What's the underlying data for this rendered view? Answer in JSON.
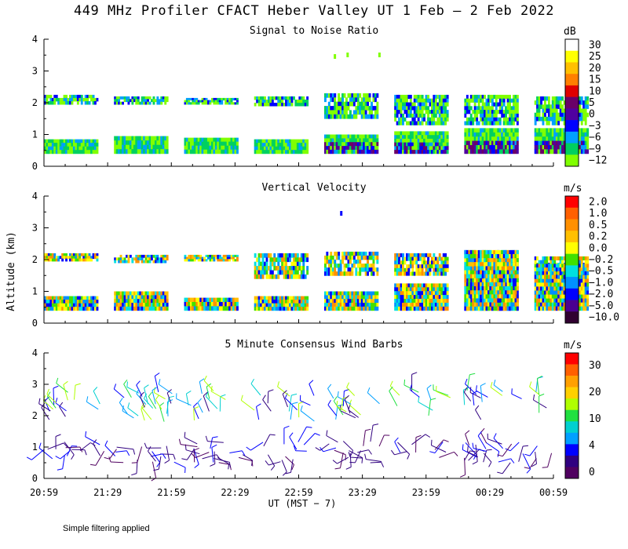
{
  "title": "449 MHz Profiler CFACT Heber Valley UT  1 Feb —  2 Feb 2022",
  "footnote": "Simple filtering applied",
  "chart_data": [
    {
      "type": "heatmap",
      "title": "Signal to Noise Ratio",
      "ylabel": "Altitude (km)",
      "ylim": [
        0,
        4
      ],
      "yticks": [
        "0",
        "1",
        "2",
        "3",
        "4"
      ],
      "colorbar_unit": "dB",
      "colorbar_labels": [
        "30",
        "25",
        "20",
        "15",
        "10",
        "5",
        "0",
        "−3",
        "−6",
        "−9",
        "−12"
      ],
      "colorbar_colors": [
        "#ffffff",
        "#ffff00",
        "#ffc000",
        "#ff8000",
        "#e00000",
        "#6a0068",
        "#5000a0",
        "#0000ff",
        "#00a0ff",
        "#00d060",
        "#80ff00"
      ],
      "blocks": [
        {
          "start": 0,
          "end": 0.85,
          "low": [
            0.4,
            0.85
          ],
          "high": [
            1.95,
            2.25
          ]
        },
        {
          "start": 1.1,
          "end": 1.95,
          "low": [
            0.4,
            0.95
          ],
          "high": [
            1.95,
            2.2
          ]
        },
        {
          "start": 2.2,
          "end": 3.05,
          "low": [
            0.4,
            0.9
          ],
          "high": [
            1.95,
            2.15
          ]
        },
        {
          "start": 3.3,
          "end": 4.15,
          "low": [
            0.4,
            0.85
          ],
          "high": [
            1.9,
            2.2
          ]
        },
        {
          "start": 4.4,
          "end": 5.25,
          "low": [
            0.4,
            1.0
          ],
          "high": [
            1.5,
            2.3
          ]
        },
        {
          "start": 5.5,
          "end": 6.35,
          "low": [
            0.4,
            1.1
          ],
          "high": [
            1.3,
            2.25
          ]
        },
        {
          "start": 6.6,
          "end": 7.45,
          "low": [
            0.4,
            1.2
          ],
          "high": [
            1.3,
            2.25
          ]
        },
        {
          "start": 7.7,
          "end": 8.55,
          "low": [
            0.4,
            1.2
          ],
          "high": [
            1.3,
            2.2
          ]
        }
      ]
    },
    {
      "type": "heatmap",
      "title": "Vertical Velocity",
      "ylabel": "Altitude (km)",
      "ylim": [
        0,
        4
      ],
      "yticks": [
        "0",
        "1",
        "2",
        "3",
        "4"
      ],
      "colorbar_unit": "m/s",
      "colorbar_labels": [
        "2.0",
        "1.0",
        "0.5",
        "0.2",
        "0.0",
        "−0.2",
        "−0.5",
        "−1.0",
        "−2.0",
        "−5.0",
        "−10.0"
      ],
      "colorbar_colors": [
        "#ff0000",
        "#ff6000",
        "#ff9000",
        "#ffc000",
        "#ffff00",
        "#40e000",
        "#00e0e0",
        "#0090ff",
        "#0000ff",
        "#4a0090",
        "#300030"
      ],
      "blocks": [
        {
          "start": 0,
          "end": 0.85,
          "low": [
            0.4,
            0.85
          ],
          "high": [
            1.95,
            2.2
          ]
        },
        {
          "start": 1.1,
          "end": 1.95,
          "low": [
            0.4,
            1.0
          ],
          "high": [
            1.9,
            2.15
          ]
        },
        {
          "start": 2.2,
          "end": 3.05,
          "low": [
            0.4,
            0.8
          ],
          "high": [
            1.95,
            2.15
          ]
        },
        {
          "start": 3.3,
          "end": 4.15,
          "low": [
            0.4,
            0.85
          ],
          "high": [
            1.4,
            2.2
          ]
        },
        {
          "start": 4.4,
          "end": 5.25,
          "low": [
            0.4,
            1.0
          ],
          "high": [
            1.5,
            2.25
          ]
        },
        {
          "start": 5.5,
          "end": 6.35,
          "low": [
            0.4,
            1.25
          ],
          "high": [
            1.5,
            2.2
          ]
        },
        {
          "start": 6.6,
          "end": 7.45,
          "low": [
            0.4,
            2.3
          ],
          "high": [
            0.4,
            2.3
          ]
        },
        {
          "start": 7.7,
          "end": 8.55,
          "low": [
            0.4,
            1.9
          ],
          "high": [
            1.4,
            2.1
          ]
        }
      ]
    },
    {
      "type": "wind-barbs",
      "title": "5 Minute Consensus Wind Barbs",
      "ylabel": "Altitude (km)",
      "xlabel": "UT  (MST − 7)",
      "ylim": [
        0,
        4
      ],
      "yticks": [
        "0",
        "1",
        "2",
        "3",
        "4"
      ],
      "xticks": [
        "20:59",
        "21:29",
        "21:59",
        "22:29",
        "22:59",
        "23:29",
        "23:59",
        "00:29",
        "00:59"
      ],
      "colorbar_unit": "m/s",
      "colorbar_labels": [
        "30",
        "20",
        "10",
        "4",
        "0"
      ],
      "colorbar_colors": [
        "#ff0000",
        "#ff6000",
        "#ffa000",
        "#ffd000",
        "#b0ff00",
        "#20e040",
        "#00d0d0",
        "#00a0ff",
        "#0000ff",
        "#300080",
        "#500060"
      ],
      "layers": [
        {
          "range": [
            0.5,
            1.2
          ],
          "speeds": [
            "0",
            "4"
          ]
        },
        {
          "range": [
            1.8,
            2.8
          ],
          "speeds": [
            "4",
            "10"
          ]
        }
      ]
    }
  ]
}
